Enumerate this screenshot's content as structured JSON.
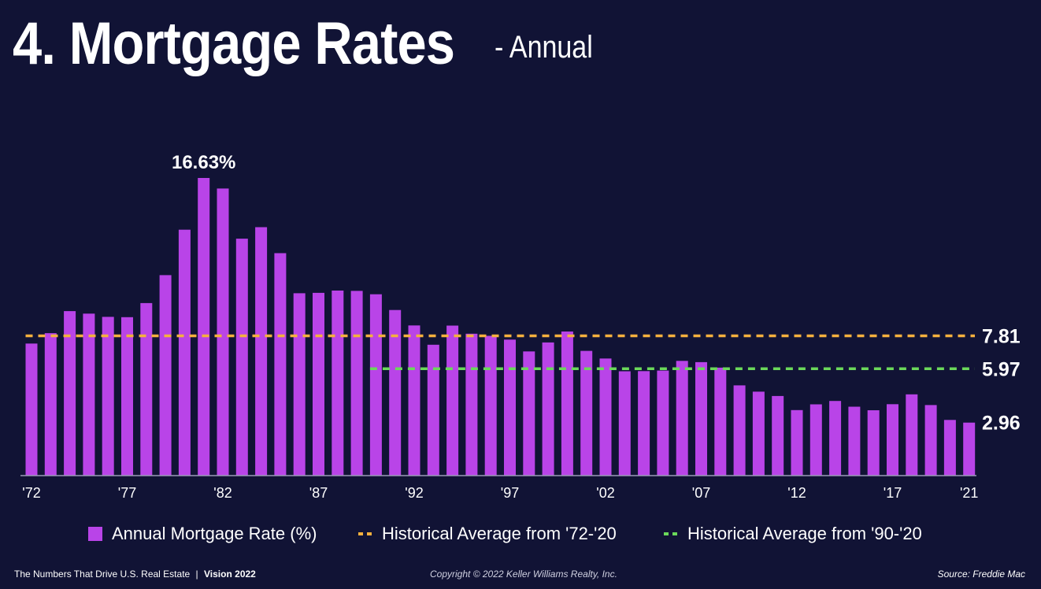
{
  "header": {
    "title": "4. Mortgage Rates",
    "subtitle": "- Annual"
  },
  "colors": {
    "background": "#111335",
    "bar": "#b944e8",
    "avg_72_20": "#f4b03e",
    "avg_90_20": "#6bd85a",
    "axis": "#9a9ab8"
  },
  "chart_data": {
    "type": "bar",
    "ylim": [
      0,
      17.5
    ],
    "grid": false,
    "categories": [
      "'72",
      "'73",
      "'74",
      "'75",
      "'76",
      "'77",
      "'78",
      "'79",
      "'80",
      "'81",
      "'82",
      "'83",
      "'84",
      "'85",
      "'86",
      "'87",
      "'88",
      "'89",
      "'90",
      "'91",
      "'92",
      "'93",
      "'94",
      "'95",
      "'96",
      "'97",
      "'98",
      "'99",
      "'00",
      "'01",
      "'02",
      "'03",
      "'04",
      "'05",
      "'06",
      "'07",
      "'08",
      "'09",
      "'10",
      "'11",
      "'12",
      "'13",
      "'14",
      "'15",
      "'16",
      "'17",
      "'18",
      "'19",
      "'20",
      "'21"
    ],
    "tick_labels": [
      "'72",
      "'77",
      "'82",
      "'87",
      "'92",
      "'97",
      "'02",
      "'07",
      "'12",
      "'17",
      "'21"
    ],
    "series": [
      {
        "name": "Annual Mortgage Rate (%)",
        "values": [
          7.38,
          7.96,
          9.19,
          9.05,
          8.87,
          8.85,
          9.64,
          11.2,
          13.74,
          16.63,
          16.04,
          13.24,
          13.88,
          12.43,
          10.19,
          10.21,
          10.34,
          10.32,
          10.13,
          9.25,
          8.39,
          7.31,
          8.38,
          7.93,
          7.81,
          7.6,
          6.94,
          7.44,
          8.05,
          6.97,
          6.54,
          5.83,
          5.84,
          5.87,
          6.41,
          6.34,
          6.03,
          5.04,
          4.69,
          4.45,
          3.66,
          3.98,
          4.17,
          3.85,
          3.65,
          3.99,
          4.54,
          3.94,
          3.11,
          2.96
        ]
      }
    ],
    "reference_lines": [
      {
        "name": "Historical Average from '72-'20",
        "value": 7.81,
        "label": "7.81",
        "from": "'72",
        "color_key": "avg_72_20"
      },
      {
        "name": "Historical Average from '90-'20",
        "value": 5.97,
        "label": "5.97",
        "from": "'90",
        "color_key": "avg_90_20"
      }
    ],
    "annotations": [
      {
        "text": "16.63%",
        "category": "'81"
      },
      {
        "text": "2.96",
        "category": "'21"
      }
    ],
    "legend_position": "bottom"
  },
  "legend": {
    "bars": "Annual Mortgage Rate (%)",
    "avg1": "Historical Average from '72-'20",
    "avg2": "Historical Average from '90-'20"
  },
  "footer": {
    "left_text": "The Numbers That Drive U.S. Real Estate",
    "separator": "|",
    "left_bold": "Vision 2022",
    "center": "Copyright © 2022 Keller Williams Realty, Inc.",
    "right": "Source: Freddie Mac"
  }
}
